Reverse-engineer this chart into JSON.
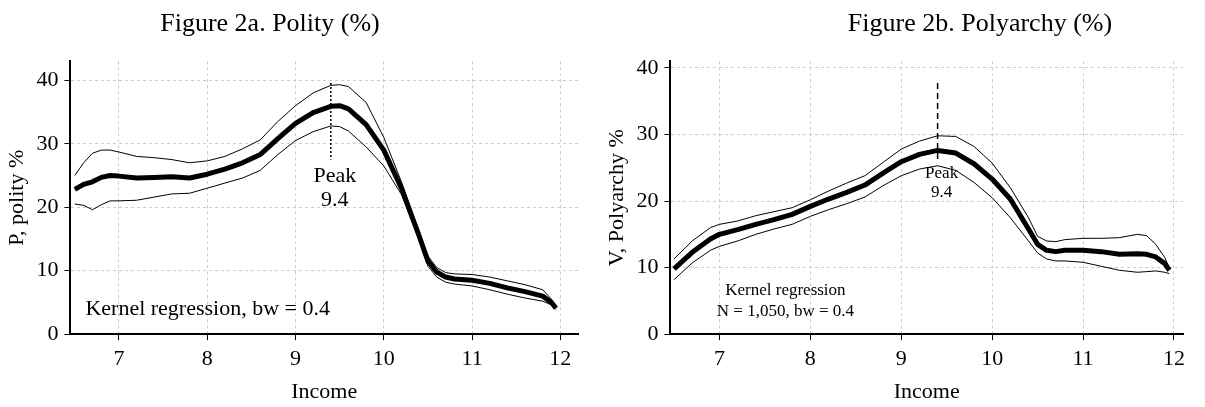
{
  "chart_data": [
    {
      "type": "line",
      "title": "Figure 2a. Polity (%)",
      "xlabel": "Income",
      "ylabel": "P, polity %",
      "x": [
        6.5,
        6.6,
        6.7,
        6.8,
        6.9,
        7.0,
        7.2,
        7.4,
        7.6,
        7.8,
        8.0,
        8.2,
        8.4,
        8.6,
        8.8,
        9.0,
        9.2,
        9.4,
        9.5,
        9.6,
        9.8,
        10.0,
        10.2,
        10.4,
        10.5,
        10.6,
        10.7,
        10.8,
        11.0,
        11.2,
        11.4,
        11.6,
        11.8,
        11.9,
        11.95
      ],
      "series": [
        {
          "color": "#000000",
          "values": [
            22.8,
            23.6,
            24,
            24.7,
            25,
            24.9,
            24.6,
            24.7,
            24.8,
            24.6,
            25.2,
            26,
            27,
            28.3,
            30.8,
            33.2,
            34.9,
            35.9,
            36,
            35.5,
            33,
            29,
            23,
            15.5,
            11.5,
            9.8,
            9,
            8.7,
            8.5,
            8,
            7.3,
            6.7,
            6,
            5,
            4.1
          ]
        },
        {
          "color": "#000000",
          "values": [
            20.5,
            20.3,
            19.6,
            20.4,
            21,
            21,
            21.1,
            21.6,
            22.1,
            22.2,
            23,
            23.8,
            24.6,
            25.8,
            28.3,
            30.5,
            31.9,
            32.8,
            32.7,
            32,
            29.5,
            26.5,
            22,
            15,
            10.7,
            9,
            8.2,
            7.9,
            7.6,
            7,
            6.3,
            5.7,
            5.2,
            4.6,
            3.9
          ]
        },
        {
          "color": "#000000",
          "values": [
            25,
            27,
            28.5,
            29,
            29,
            28.7,
            28,
            27.8,
            27.5,
            27,
            27.3,
            28,
            29.2,
            30.6,
            33.5,
            36,
            38,
            39.2,
            39.3,
            39,
            36.5,
            31,
            24,
            16,
            12.3,
            10.5,
            9.7,
            9.5,
            9.4,
            9,
            8.4,
            7.8,
            7,
            5.5,
            4.3
          ]
        }
      ],
      "xlim": [
        6.45,
        12.2
      ],
      "xticks": [
        7,
        8,
        9,
        10,
        11,
        12
      ],
      "ylim": [
        0,
        43
      ],
      "yticks": [
        0,
        10,
        20,
        30,
        40
      ],
      "grid": true,
      "ref_lines": [
        {
          "axis": "x",
          "value": 9.4,
          "label": "Peak 9.4",
          "line_style": "dotted"
        }
      ],
      "annotations": [
        "Kernel regression, bw = 0.4"
      ]
    },
    {
      "type": "line",
      "title": "Figure 2b. Polyarchy (%)",
      "xlabel": "Income",
      "ylabel": "V, Polyarchy %",
      "x": [
        6.5,
        6.7,
        6.9,
        7.0,
        7.2,
        7.4,
        7.6,
        7.8,
        8.0,
        8.2,
        8.4,
        8.6,
        8.8,
        9.0,
        9.2,
        9.4,
        9.6,
        9.8,
        10.0,
        10.2,
        10.4,
        10.5,
        10.6,
        10.7,
        10.8,
        11.0,
        11.2,
        11.4,
        11.6,
        11.7,
        11.8,
        11.9,
        11.95
      ],
      "series": [
        {
          "color": "#000000",
          "values": [
            9.8,
            12.3,
            14.3,
            15,
            15.7,
            16.5,
            17.2,
            18,
            19.2,
            20.3,
            21.3,
            22.4,
            24.2,
            25.9,
            27,
            27.6,
            27.2,
            25.6,
            23.3,
            20.3,
            15.8,
            13.5,
            12.6,
            12.4,
            12.6,
            12.6,
            12.4,
            12,
            12.1,
            12,
            11.6,
            10.6,
            9.6
          ]
        },
        {
          "color": "#000000",
          "values": [
            8.2,
            10.7,
            12.6,
            13.2,
            14,
            15,
            15.8,
            16.5,
            17.7,
            18.7,
            19.6,
            20.6,
            22.3,
            23.8,
            24.8,
            25.3,
            24.6,
            22.8,
            20.5,
            17.5,
            14,
            12.2,
            11.3,
            11,
            11,
            10.8,
            10.2,
            9.6,
            9.3,
            9.4,
            9.5,
            9.3,
            9.1
          ]
        },
        {
          "color": "#000000",
          "values": [
            11.3,
            14,
            16,
            16.5,
            17,
            17.8,
            18.4,
            19,
            20.2,
            21.5,
            22.7,
            23.8,
            25.8,
            27.8,
            29,
            29.8,
            29.7,
            28.2,
            25.7,
            22,
            17.5,
            14.7,
            14,
            13.9,
            14.2,
            14.4,
            14.4,
            14.5,
            15,
            14.8,
            13.5,
            11.5,
            9.9
          ]
        }
      ],
      "xlim": [
        6.46,
        12.1
      ],
      "xticks": [
        7,
        8,
        9,
        10,
        11,
        12
      ],
      "ylim": [
        0,
        41
      ],
      "yticks": [
        0,
        10,
        20,
        30,
        40
      ],
      "grid": true,
      "ref_lines": [
        {
          "axis": "x",
          "value": 9.4,
          "label": "Peak 9.4",
          "line_style": "dashed"
        }
      ],
      "annotations": [
        "Kernel regression",
        "N = 1,050, bw = 0.4"
      ]
    }
  ]
}
